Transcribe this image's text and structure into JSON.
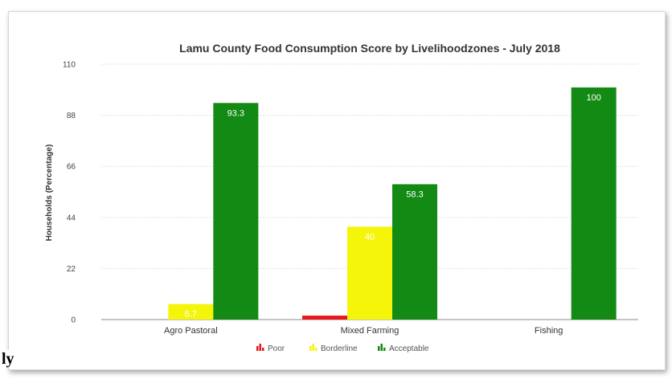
{
  "chart_data": {
    "type": "bar",
    "title": "Lamu County Food Consumption Score by Livelihoodzones - July 2018",
    "xlabel": "",
    "ylabel": "Households (Percentage)",
    "ylim": [
      0,
      110
    ],
    "yticks": [
      0,
      22,
      44,
      66,
      88,
      110
    ],
    "categories": [
      "Agro Pastoral",
      "Mixed Farming",
      "Fishing"
    ],
    "series": [
      {
        "name": "Poor",
        "color": "#e8171b",
        "values": [
          0,
          1.7,
          0
        ],
        "labels": [
          "",
          "",
          ""
        ]
      },
      {
        "name": "Borderline",
        "color": "#f5f50a",
        "values": [
          6.7,
          40,
          0
        ],
        "labels": [
          "6.7",
          "40",
          ""
        ]
      },
      {
        "name": "Acceptable",
        "color": "#138a13",
        "values": [
          93.3,
          58.3,
          100
        ],
        "labels": [
          "93.3",
          "58.3",
          "100"
        ]
      }
    ],
    "grid": true,
    "legend": "bottom"
  },
  "page": {
    "stray_text": "ly"
  }
}
